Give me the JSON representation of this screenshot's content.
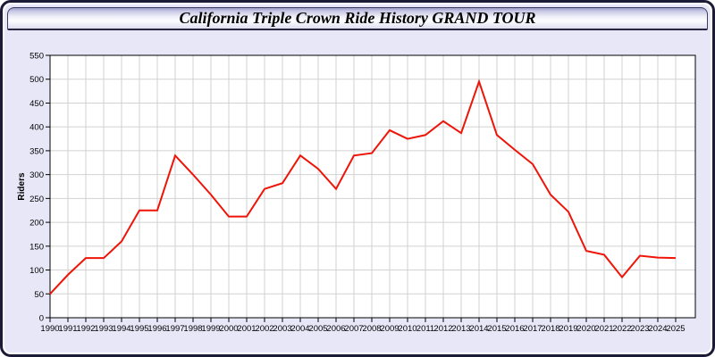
{
  "window": {
    "title": "California Triple Crown Ride History GRAND TOUR"
  },
  "chart_data": {
    "type": "line",
    "title": "California Triple Crown Ride History GRAND TOUR",
    "xlabel": "",
    "ylabel": "Riders",
    "x": [
      1990,
      1991,
      1992,
      1993,
      1994,
      1995,
      1996,
      1997,
      1998,
      1999,
      2000,
      2001,
      2002,
      2003,
      2004,
      2005,
      2006,
      2007,
      2008,
      2009,
      2010,
      2011,
      2012,
      2013,
      2014,
      2015,
      2016,
      2017,
      2018,
      2019,
      2020,
      2021,
      2022,
      2023,
      2024,
      2025
    ],
    "series": [
      {
        "name": "Riders",
        "color": "#ee1408",
        "values": [
          50,
          90,
          125,
          125,
          160,
          225,
          225,
          340,
          300,
          258,
          212,
          212,
          270,
          282,
          340,
          312,
          270,
          340,
          345,
          393,
          375,
          383,
          412,
          387,
          495,
          383,
          352,
          322,
          258,
          222,
          140,
          132,
          85,
          130,
          126,
          125
        ]
      }
    ],
    "ylim": [
      0,
      550
    ],
    "yticks": [
      0,
      50,
      100,
      150,
      200,
      250,
      300,
      350,
      400,
      450,
      500,
      550
    ],
    "grid": true,
    "legend": "none",
    "colors": {
      "plot_bg": "#ffffff",
      "grid": "#d2d2d2",
      "axis": "#000000",
      "tick_label": "#000000",
      "window_bg": "#e7e7f8",
      "window_border": "#1b1b38"
    }
  }
}
